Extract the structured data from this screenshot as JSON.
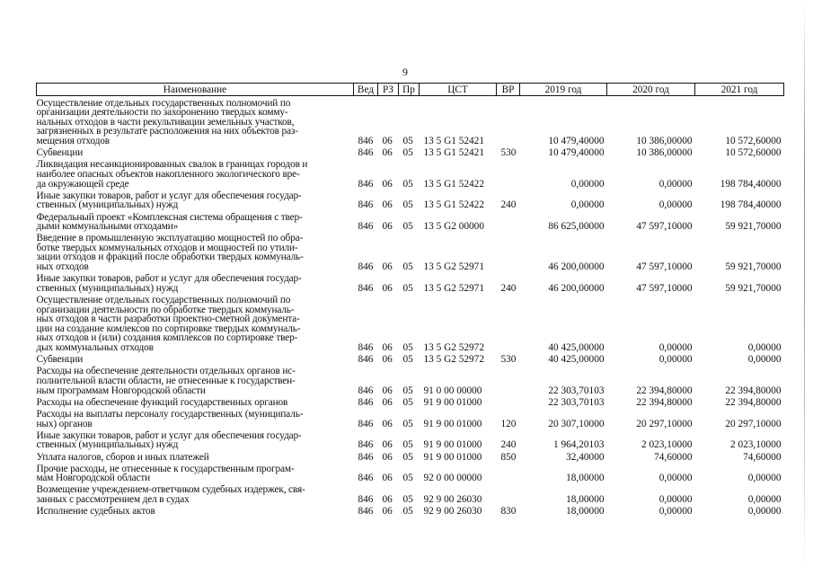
{
  "page_number": "9",
  "table": {
    "headers": [
      "Наименование",
      "Вед",
      "РЗ",
      "Пр",
      "ЦСТ",
      "ВР",
      "2019 год",
      "2020 год",
      "2021 год"
    ],
    "rows": [
      {
        "name": [
          "Осуществление отдельных государственных полномочий по",
          "организации деятельности по захоронению твердых комму-",
          "нальных отходов в части рекультивации земельных участков,",
          "загрязненных в результате расположения на них объектов раз-",
          "мещения отходов"
        ],
        "ved": "846",
        "rz": "06",
        "pr": "05",
        "cst": "13 5 G1 52421",
        "vr": "",
        "y2019": "10 479,40000",
        "y2020": "10 386,00000",
        "y2021": "10 572,60000"
      },
      {
        "name": [
          "Субвенции"
        ],
        "ved": "846",
        "rz": "06",
        "pr": "05",
        "cst": "13 5 G1 52421",
        "vr": "530",
        "y2019": "10 479,40000",
        "y2020": "10 386,00000",
        "y2021": "10 572,60000"
      },
      {
        "name": [
          "Ликвидация несанкционированных свалок в границах городов и",
          "наиболее опасных объектов накопленного экологического вре-",
          "да окружающей среде"
        ],
        "ved": "846",
        "rz": "06",
        "pr": "05",
        "cst": "13 5 G1 52422",
        "vr": "",
        "y2019": "0,00000",
        "y2020": "0,00000",
        "y2021": "198 784,40000"
      },
      {
        "name": [
          "Иные закупки товаров, работ и услуг для обеспечения государ-",
          "ственных (муниципальных) нужд"
        ],
        "ved": "846",
        "rz": "06",
        "pr": "05",
        "cst": "13 5 G1 52422",
        "vr": "240",
        "y2019": "0,00000",
        "y2020": "0,00000",
        "y2021": "198 784,40000"
      },
      {
        "name": [
          "Федеральный проект «Комплексная система обращения с твер-",
          "дыми коммунальными отходами»"
        ],
        "ved": "846",
        "rz": "06",
        "pr": "05",
        "cst": "13 5 G2 00000",
        "vr": "",
        "y2019": "86 625,00000",
        "y2020": "47 597,10000",
        "y2021": "59 921,70000"
      },
      {
        "name": [
          "Введение в промышленную эксплуатацию мощностей по обра-",
          "ботке твердых коммунальных отходов и мощностей по утили-",
          "зации отходов и фракций после обработки твердых коммуналь-",
          "ных отходов"
        ],
        "ved": "846",
        "rz": "06",
        "pr": "05",
        "cst": "13 5 G2 52971",
        "vr": "",
        "y2019": "46 200,00000",
        "y2020": "47 597,10000",
        "y2021": "59 921,70000"
      },
      {
        "name": [
          "Иные закупки товаров, работ и услуг для обеспечения государ-",
          "ственных (муниципальных) нужд"
        ],
        "ved": "846",
        "rz": "06",
        "pr": "05",
        "cst": "13 5 G2 52971",
        "vr": "240",
        "y2019": "46 200,00000",
        "y2020": "47 597,10000",
        "y2021": "59 921,70000"
      },
      {
        "name": [
          "Осуществление отдельных государственных полномочий по",
          "организации деятельности по обработке твердых коммуналь-",
          "ных отходов в части разработки проектно-сметной документа-",
          "ции на создание комлексов по сортировке твердых коммуналь-",
          "ных отходов и (или) создания комплексов по сортировке твер-",
          "дых коммунальных отходов"
        ],
        "ved": "846",
        "rz": "06",
        "pr": "05",
        "cst": "13 5 G2 52972",
        "vr": "",
        "y2019": "40 425,00000",
        "y2020": "0,00000",
        "y2021": "0,00000"
      },
      {
        "name": [
          "Субвенции"
        ],
        "ved": "846",
        "rz": "06",
        "pr": "05",
        "cst": "13 5 G2 52972",
        "vr": "530",
        "y2019": "40 425,00000",
        "y2020": "0,00000",
        "y2021": "0,00000"
      },
      {
        "name": [
          "Расходы на обеспечение деятельности отдельных органов ис-",
          "полнительной власти области, не отнесенные к государствен-",
          "ным программам Новгородской области"
        ],
        "ved": "846",
        "rz": "06",
        "pr": "05",
        "cst": "91 0 00 00000",
        "vr": "",
        "y2019": "22 303,70103",
        "y2020": "22 394,80000",
        "y2021": "22 394,80000"
      },
      {
        "name": [
          "Расходы на обеспечение функций государственных органов"
        ],
        "ved": "846",
        "rz": "06",
        "pr": "05",
        "cst": "91 9 00 01000",
        "vr": "",
        "y2019": "22 303,70103",
        "y2020": "22 394,80000",
        "y2021": "22 394,80000"
      },
      {
        "name": [
          "Расходы на выплаты персоналу государственных (муниципаль-",
          "ных) органов"
        ],
        "ved": "846",
        "rz": "06",
        "pr": "05",
        "cst": "91 9 00 01000",
        "vr": "120",
        "y2019": "20 307,10000",
        "y2020": "20 297,10000",
        "y2021": "20 297,10000"
      },
      {
        "name": [
          "Иные закупки товаров, работ и услуг для обеспечения государ-",
          "ственных (муниципальных) нужд"
        ],
        "ved": "846",
        "rz": "06",
        "pr": "05",
        "cst": "91 9 00 01000",
        "vr": "240",
        "y2019": "1 964,20103",
        "y2020": "2 023,10000",
        "y2021": "2 023,10000"
      },
      {
        "name": [
          "Уплата налогов, сборов и иных платежей"
        ],
        "ved": "846",
        "rz": "06",
        "pr": "05",
        "cst": "91 9 00 01000",
        "vr": "850",
        "y2019": "32,40000",
        "y2020": "74,60000",
        "y2021": "74,60000"
      },
      {
        "name": [
          "Прочие расходы, не отнесенные к государственным програм-",
          "мам Новгородской области"
        ],
        "ved": "846",
        "rz": "06",
        "pr": "05",
        "cst": "92 0 00 00000",
        "vr": "",
        "y2019": "18,00000",
        "y2020": "0,00000",
        "y2021": "0,00000"
      },
      {
        "name": [
          "Возмещение учреждением-ответчиком судебных издержек, свя-",
          "занных с рассмотрением дел в судах"
        ],
        "ved": "846",
        "rz": "06",
        "pr": "05",
        "cst": "92 9 00 26030",
        "vr": "",
        "y2019": "18,00000",
        "y2020": "0,00000",
        "y2021": "0,00000"
      },
      {
        "name": [
          "Исполнение судебных актов"
        ],
        "ved": "846",
        "rz": "06",
        "pr": "05",
        "cst": "92 9 00 26030",
        "vr": "830",
        "y2019": "18,00000",
        "y2020": "0,00000",
        "y2021": "0,00000"
      }
    ]
  }
}
